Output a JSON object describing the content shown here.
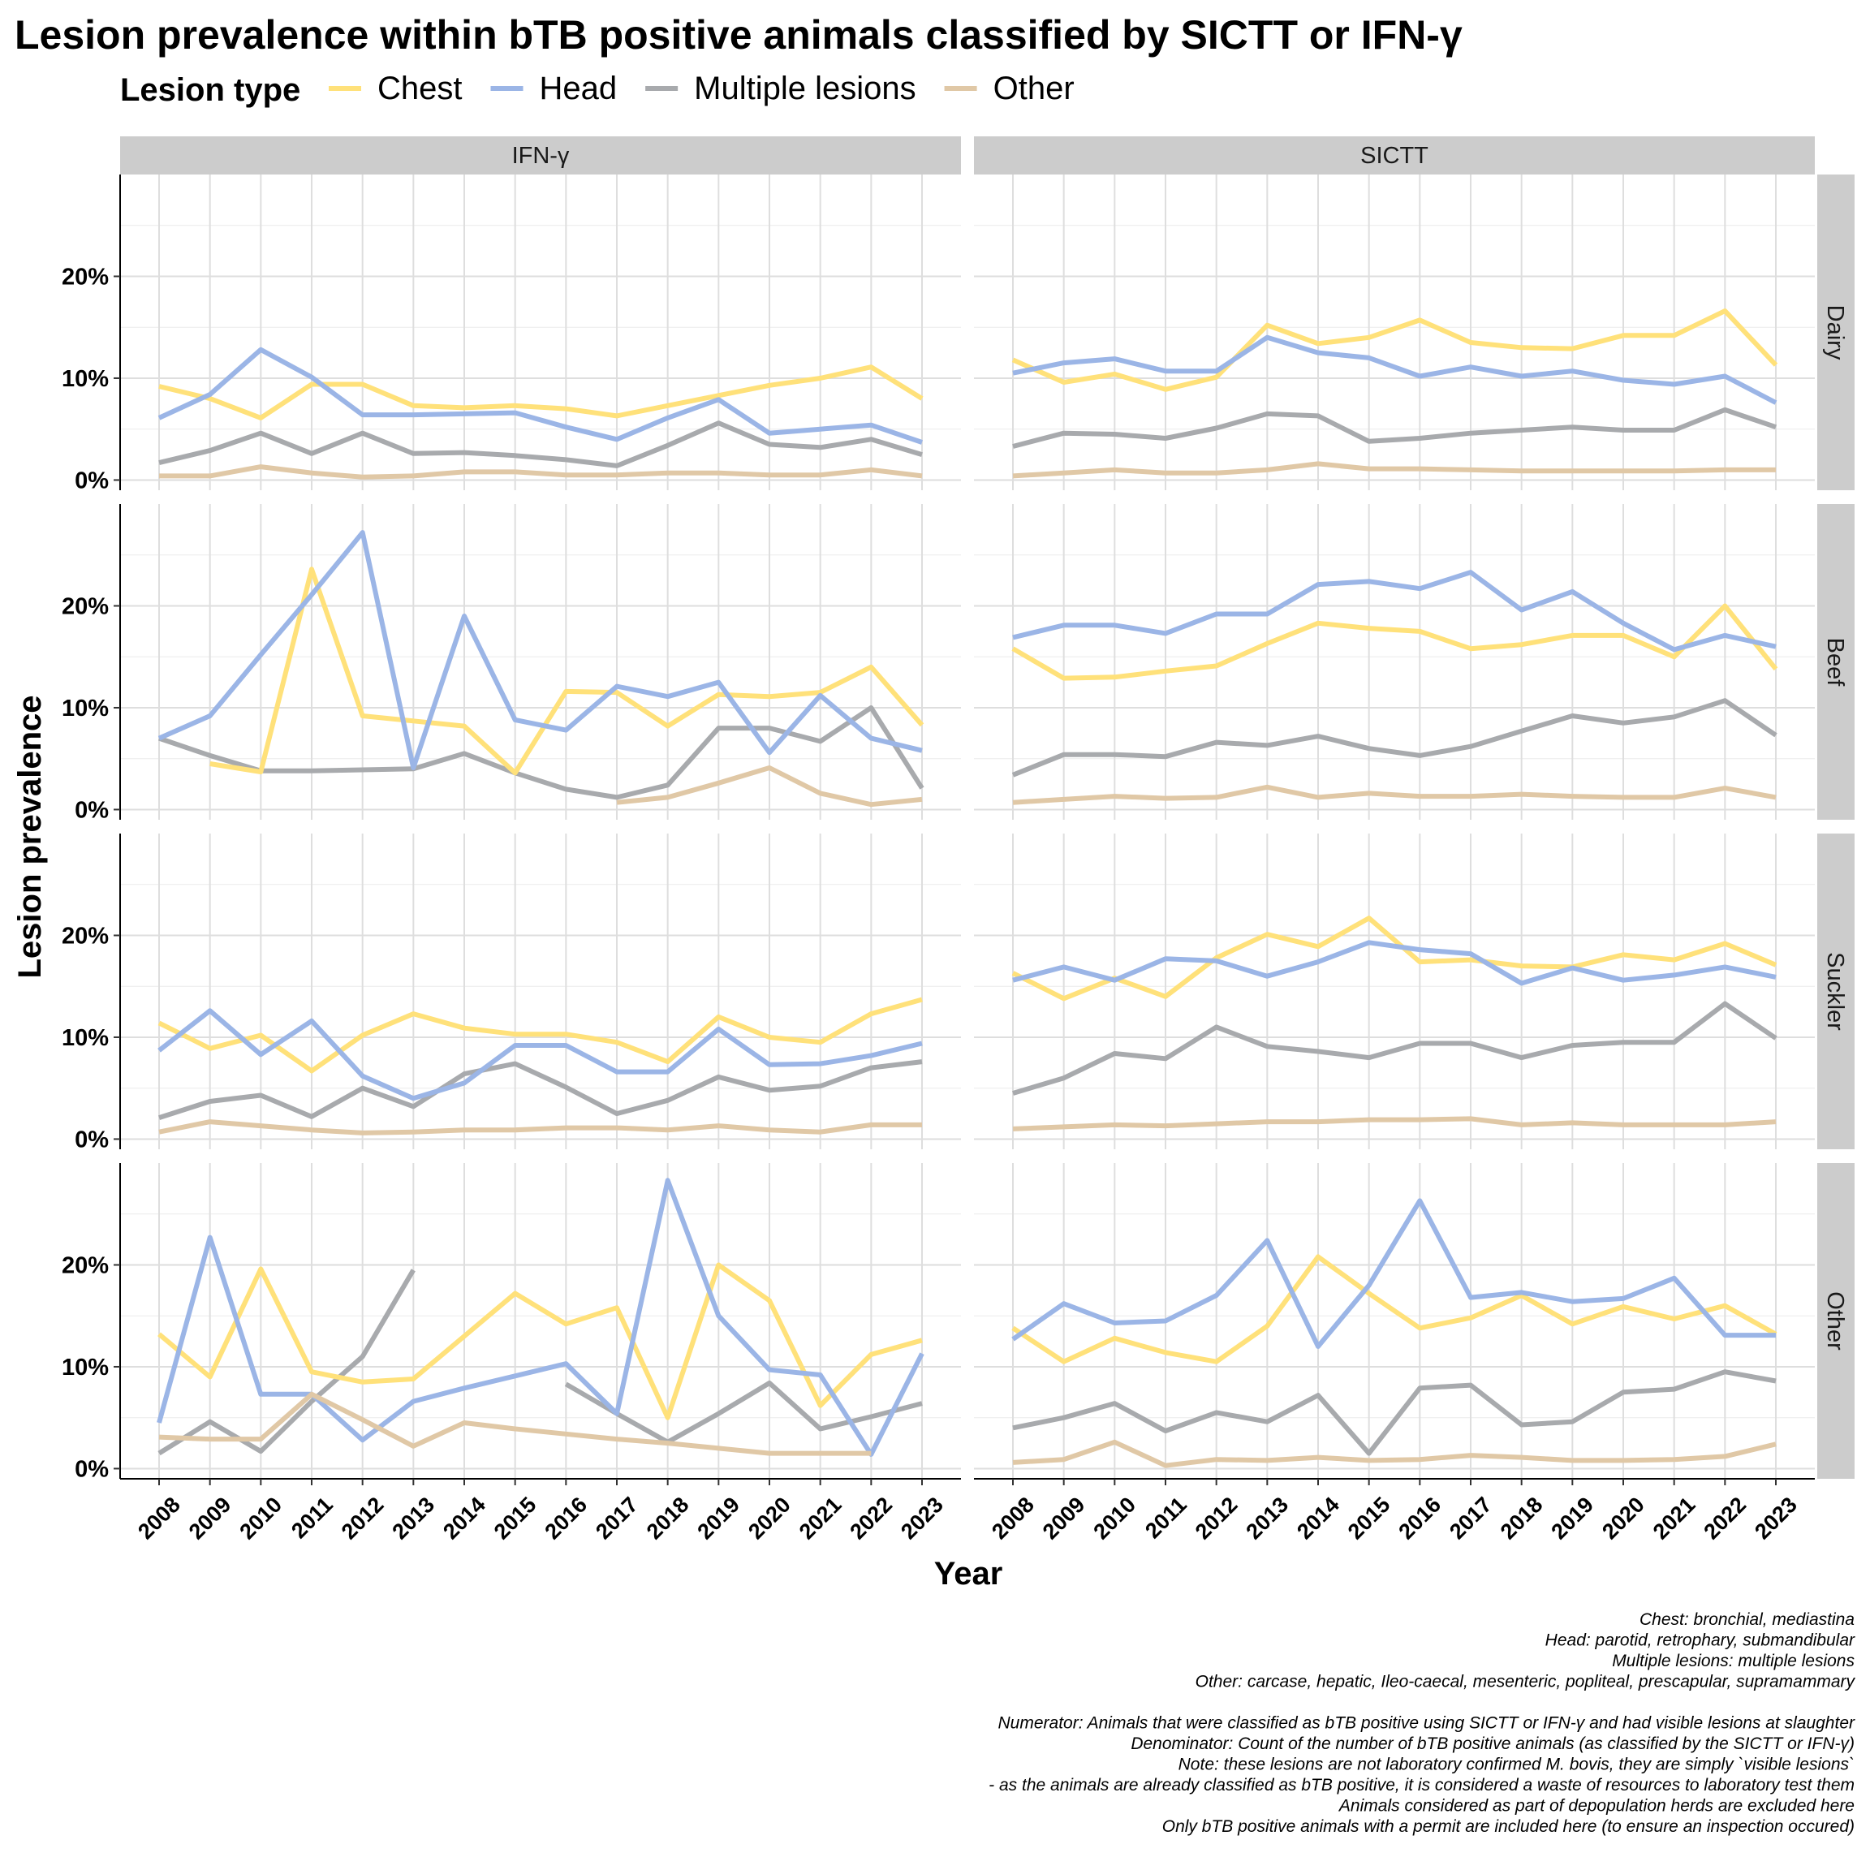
{
  "chart_data": {
    "type": "line",
    "title": "Lesion prevalence within bTB positive animals classified by SICTT or IFN-γ",
    "xlabel": "Year",
    "ylabel": "Lesion prevalence",
    "legend": {
      "title": "Lesion type",
      "position": "top",
      "entries": [
        "Chest",
        "Head",
        "Multiple lesions",
        "Other"
      ]
    },
    "colors": {
      "Chest": "#FFE17A",
      "Head": "#9BB5E6",
      "Multiple lesions": "#A8AAAD",
      "Other": "#E0C8A6"
    },
    "columns": [
      "IFN-γ",
      "SICTT"
    ],
    "rows": [
      "Dairy",
      "Beef",
      "Suckler",
      "Other"
    ],
    "x": [
      2008,
      2009,
      2010,
      2011,
      2012,
      2013,
      2014,
      2015,
      2016,
      2017,
      2018,
      2019,
      2020,
      2021,
      2022,
      2023
    ],
    "y_ticks": [
      "0%",
      "10%",
      "20%"
    ],
    "y_tick_values": [
      0,
      10,
      20
    ],
    "ylim": [
      -1,
      30
    ],
    "grid": true,
    "facets": [
      {
        "column": "IFN-γ",
        "row": "Dairy",
        "series": [
          {
            "name": "Chest",
            "values": [
              9.2,
              8.0,
              6.1,
              9.4,
              9.4,
              7.3,
              7.1,
              7.3,
              7.0,
              6.3,
              7.3,
              8.3,
              9.3,
              10.0,
              11.1,
              8.0
            ]
          },
          {
            "name": "Head",
            "values": [
              6.1,
              8.4,
              12.8,
              10.1,
              6.4,
              6.4,
              6.5,
              6.6,
              5.2,
              4.0,
              6.1,
              7.9,
              4.6,
              5.0,
              5.4,
              3.7
            ]
          },
          {
            "name": "Multiple lesions",
            "values": [
              1.7,
              2.9,
              4.6,
              2.6,
              4.6,
              2.6,
              2.7,
              2.4,
              2.0,
              1.4,
              3.4,
              5.6,
              3.5,
              3.2,
              4.0,
              2.5
            ]
          },
          {
            "name": "Other",
            "values": [
              0.4,
              0.4,
              1.3,
              0.7,
              0.3,
              0.4,
              0.8,
              0.8,
              0.5,
              0.5,
              0.7,
              0.7,
              0.5,
              0.5,
              1.0,
              0.4
            ]
          }
        ]
      },
      {
        "column": "SICTT",
        "row": "Dairy",
        "series": [
          {
            "name": "Chest",
            "values": [
              11.8,
              9.6,
              10.4,
              8.9,
              10.1,
              15.2,
              13.4,
              14.0,
              15.7,
              13.5,
              13.0,
              12.9,
              14.2,
              14.2,
              16.6,
              11.3
            ]
          },
          {
            "name": "Head",
            "values": [
              10.5,
              11.5,
              11.9,
              10.7,
              10.7,
              14.0,
              12.5,
              12.0,
              10.2,
              11.1,
              10.2,
              10.7,
              9.8,
              9.4,
              10.2,
              7.6
            ]
          },
          {
            "name": "Multiple lesions",
            "values": [
              3.3,
              4.6,
              4.5,
              4.1,
              5.1,
              6.5,
              6.3,
              3.8,
              4.1,
              4.6,
              4.9,
              5.2,
              4.9,
              4.9,
              6.9,
              5.2
            ]
          },
          {
            "name": "Other",
            "values": [
              0.4,
              0.7,
              1.0,
              0.7,
              0.7,
              1.0,
              1.6,
              1.1,
              1.1,
              1.0,
              0.9,
              0.9,
              0.9,
              0.9,
              1.0,
              1.0
            ]
          }
        ]
      },
      {
        "column": "IFN-γ",
        "row": "Beef",
        "series": [
          {
            "name": "Chest",
            "values": [
              null,
              4.5,
              3.7,
              23.6,
              9.2,
              8.7,
              8.2,
              3.6,
              11.6,
              11.5,
              8.2,
              11.3,
              11.1,
              11.5,
              14.0,
              8.3
            ]
          },
          {
            "name": "Head",
            "values": [
              7.0,
              9.2,
              15.2,
              21.1,
              27.2,
              4.1,
              19.0,
              8.8,
              7.8,
              12.1,
              11.1,
              12.5,
              5.6,
              11.2,
              7.0,
              5.8
            ]
          },
          {
            "name": "Multiple lesions",
            "values": [
              7.0,
              5.3,
              3.8,
              3.8,
              3.9,
              4.0,
              5.5,
              3.6,
              2.0,
              1.2,
              2.4,
              8.0,
              8.0,
              6.7,
              10.0,
              2.1
            ]
          },
          {
            "name": "Other",
            "values": [
              null,
              null,
              null,
              null,
              null,
              null,
              null,
              null,
              null,
              0.7,
              1.2,
              2.6,
              4.1,
              1.6,
              0.5,
              1.0
            ]
          }
        ]
      },
      {
        "column": "SICTT",
        "row": "Beef",
        "series": [
          {
            "name": "Chest",
            "values": [
              15.8,
              12.9,
              13.0,
              13.6,
              14.1,
              16.3,
              18.3,
              17.8,
              17.5,
              15.8,
              16.2,
              17.1,
              17.1,
              15.0,
              20.0,
              13.8
            ]
          },
          {
            "name": "Head",
            "values": [
              16.9,
              18.1,
              18.1,
              17.3,
              19.2,
              19.2,
              22.1,
              22.4,
              21.7,
              23.3,
              19.6,
              21.4,
              18.3,
              15.7,
              17.1,
              16.0
            ]
          },
          {
            "name": "Multiple lesions",
            "values": [
              3.4,
              5.4,
              5.4,
              5.2,
              6.6,
              6.3,
              7.2,
              6.0,
              5.3,
              6.2,
              7.7,
              9.2,
              8.5,
              9.1,
              10.7,
              7.3
            ]
          },
          {
            "name": "Other",
            "values": [
              0.7,
              1.0,
              1.3,
              1.1,
              1.2,
              2.2,
              1.2,
              1.6,
              1.3,
              1.3,
              1.5,
              1.3,
              1.2,
              1.2,
              2.1,
              1.2
            ]
          }
        ]
      },
      {
        "column": "IFN-γ",
        "row": "Suckler",
        "series": [
          {
            "name": "Chest",
            "values": [
              11.4,
              8.9,
              10.2,
              6.7,
              10.2,
              12.3,
              10.9,
              10.3,
              10.3,
              9.5,
              7.6,
              12.0,
              10.0,
              9.5,
              12.3,
              13.7
            ]
          },
          {
            "name": "Head",
            "values": [
              8.7,
              12.6,
              8.3,
              11.6,
              6.2,
              4.0,
              5.5,
              9.2,
              9.2,
              6.6,
              6.6,
              10.8,
              7.3,
              7.4,
              8.2,
              9.4
            ]
          },
          {
            "name": "Multiple lesions",
            "values": [
              2.1,
              3.7,
              4.3,
              2.2,
              5.0,
              3.2,
              6.4,
              7.4,
              5.1,
              2.5,
              3.8,
              6.1,
              4.8,
              5.2,
              7.0,
              7.6
            ]
          },
          {
            "name": "Other",
            "values": [
              0.7,
              1.7,
              1.3,
              0.9,
              0.6,
              0.7,
              0.9,
              0.9,
              1.1,
              1.1,
              0.9,
              1.3,
              0.9,
              0.7,
              1.4,
              1.4
            ]
          }
        ]
      },
      {
        "column": "SICTT",
        "row": "Suckler",
        "series": [
          {
            "name": "Chest",
            "values": [
              16.3,
              13.8,
              15.8,
              14.0,
              17.8,
              20.1,
              18.9,
              21.7,
              17.4,
              17.6,
              17.0,
              16.9,
              18.1,
              17.6,
              19.2,
              17.1
            ]
          },
          {
            "name": "Head",
            "values": [
              15.6,
              16.9,
              15.6,
              17.7,
              17.5,
              16.0,
              17.4,
              19.3,
              18.6,
              18.2,
              15.3,
              16.8,
              15.6,
              16.1,
              16.9,
              15.9
            ]
          },
          {
            "name": "Multiple lesions",
            "values": [
              4.5,
              6.0,
              8.4,
              7.9,
              11.0,
              9.1,
              8.6,
              8.0,
              9.4,
              9.4,
              8.0,
              9.2,
              9.5,
              9.5,
              13.3,
              9.9
            ]
          },
          {
            "name": "Other",
            "values": [
              1.0,
              1.2,
              1.4,
              1.3,
              1.5,
              1.7,
              1.7,
              1.9,
              1.9,
              2.0,
              1.4,
              1.6,
              1.4,
              1.4,
              1.4,
              1.7
            ]
          }
        ]
      },
      {
        "column": "IFN-γ",
        "row": "Other",
        "series": [
          {
            "name": "Chest",
            "values": [
              13.2,
              9.0,
              19.6,
              9.5,
              8.5,
              8.8,
              13.0,
              17.2,
              14.2,
              15.8,
              5.0,
              20.0,
              16.5,
              6.2,
              11.2,
              12.6
            ]
          },
          {
            "name": "Head",
            "values": [
              4.5,
              22.7,
              7.3,
              7.3,
              2.8,
              6.6,
              7.9,
              9.1,
              10.3,
              5.4,
              28.3,
              15.0,
              9.7,
              9.2,
              1.4,
              11.3
            ]
          },
          {
            "name": "Multiple lesions",
            "values": [
              1.5,
              4.6,
              1.7,
              6.6,
              11.0,
              19.5,
              null,
              null,
              8.3,
              5.4,
              2.6,
              5.4,
              8.4,
              3.9,
              5.1,
              6.4
            ]
          },
          {
            "name": "Other",
            "values": [
              3.1,
              2.9,
              2.9,
              7.3,
              4.8,
              2.2,
              4.5,
              3.9,
              3.4,
              2.9,
              2.5,
              2.0,
              1.5,
              1.5,
              1.5,
              null
            ]
          }
        ]
      },
      {
        "column": "SICTT",
        "row": "Other",
        "series": [
          {
            "name": "Chest",
            "values": [
              13.8,
              10.5,
              12.8,
              11.4,
              10.5,
              14.0,
              20.8,
              17.2,
              13.8,
              14.8,
              17.0,
              14.2,
              15.9,
              14.7,
              16.0,
              13.2
            ]
          },
          {
            "name": "Head",
            "values": [
              12.7,
              16.2,
              14.3,
              14.5,
              17.0,
              22.4,
              12.0,
              18.0,
              26.3,
              16.8,
              17.3,
              16.4,
              16.7,
              18.7,
              13.1,
              13.1
            ]
          },
          {
            "name": "Multiple lesions",
            "values": [
              4.0,
              5.0,
              6.4,
              3.7,
              5.5,
              4.6,
              7.2,
              1.5,
              7.9,
              8.2,
              4.3,
              4.6,
              7.5,
              7.8,
              9.5,
              8.6
            ]
          },
          {
            "name": "Other",
            "values": [
              0.6,
              0.9,
              2.6,
              0.3,
              0.9,
              0.8,
              1.1,
              0.8,
              0.9,
              1.3,
              1.1,
              0.8,
              0.8,
              0.9,
              1.2,
              2.4
            ]
          }
        ]
      }
    ]
  },
  "caption_lines": [
    "Chest: bronchial, mediastina",
    "Head: parotid, retrophary, submandibular",
    "Multiple lesions: multiple lesions",
    "Other: carcase, hepatic, Ileo-caecal, mesenteric, popliteal, prescapular, supramammary",
    "",
    "Numerator: Animals that were classified as bTB positive using SICTT or IFN-γ and had visible lesions at slaughter",
    "Denominator: Count of the number of bTB positive animals (as classified by the SICTT or IFN-γ)",
    "Note: these lesions are not laboratory confirmed M. bovis, they are simply `visible lesions`",
    "- as the animals are already classified as bTB positive, it is considered a waste of resources to laboratory test them",
    "Animals considered as part of depopulation herds are excluded here",
    "Only bTB positive animals with a permit are included here (to ensure an inspection occured)"
  ]
}
